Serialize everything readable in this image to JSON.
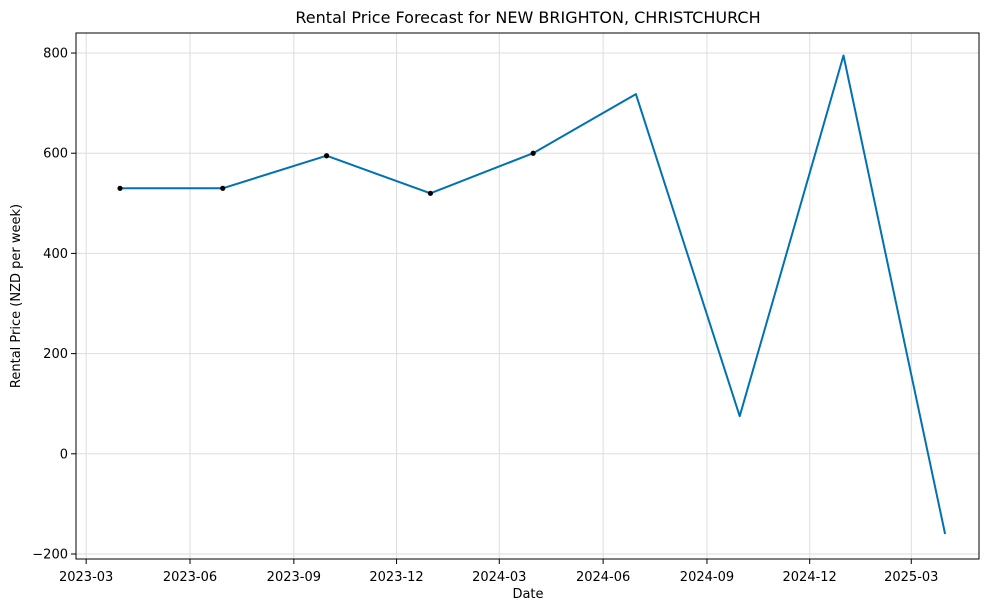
{
  "chart_data": {
    "type": "line",
    "title": "Rental Price Forecast for NEW BRIGHTON, CHRISTCHURCH",
    "xlabel": "Date",
    "ylabel": "Rental Price (NZD per week)",
    "x_axis_type": "date",
    "xlim": [
      "2023-02-20",
      "2025-04-30"
    ],
    "ylim": [
      -210,
      840
    ],
    "grid": true,
    "x_ticks": [
      {
        "date": "2023-03-01",
        "label": "2023-03"
      },
      {
        "date": "2023-06-01",
        "label": "2023-06"
      },
      {
        "date": "2023-09-01",
        "label": "2023-09"
      },
      {
        "date": "2023-12-01",
        "label": "2023-12"
      },
      {
        "date": "2024-03-01",
        "label": "2024-03"
      },
      {
        "date": "2024-06-01",
        "label": "2024-06"
      },
      {
        "date": "2024-09-01",
        "label": "2024-09"
      },
      {
        "date": "2024-12-01",
        "label": "2024-12"
      },
      {
        "date": "2025-03-01",
        "label": "2025-03"
      }
    ],
    "y_ticks": [
      {
        "value": 800,
        "label": "800"
      },
      {
        "value": 600,
        "label": "600"
      },
      {
        "value": 400,
        "label": "400"
      },
      {
        "value": 200,
        "label": "200"
      },
      {
        "value": 0,
        "label": "0"
      },
      {
        "value": -200,
        "label": "−200"
      }
    ],
    "series": [
      {
        "role": "forecast",
        "color": "#0072B2",
        "points": [
          {
            "x": "2023-03-31",
            "y": 530
          },
          {
            "x": "2023-06-30",
            "y": 530
          },
          {
            "x": "2023-09-30",
            "y": 595
          },
          {
            "x": "2023-12-31",
            "y": 520
          },
          {
            "x": "2024-03-31",
            "y": 600
          },
          {
            "x": "2024-06-30",
            "y": 718
          },
          {
            "x": "2024-09-30",
            "y": 75
          },
          {
            "x": "2024-12-31",
            "y": 795
          },
          {
            "x": "2025-03-31",
            "y": -160
          }
        ]
      },
      {
        "role": "observed",
        "color": "#000000",
        "points": [
          {
            "x": "2023-03-31",
            "y": 530
          },
          {
            "x": "2023-06-30",
            "y": 530
          },
          {
            "x": "2023-09-30",
            "y": 595
          },
          {
            "x": "2023-12-31",
            "y": 520
          },
          {
            "x": "2024-03-31",
            "y": 600
          }
        ]
      }
    ]
  }
}
